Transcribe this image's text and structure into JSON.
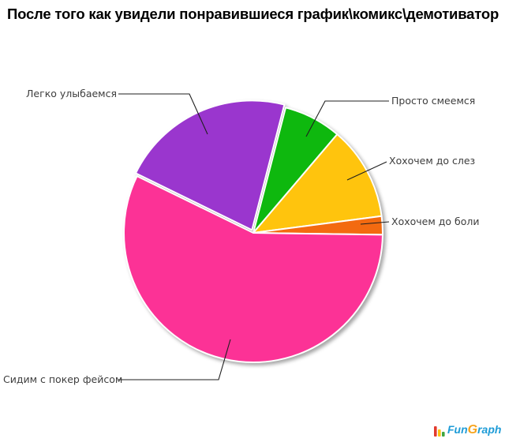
{
  "title": "После того как увидели понравившиеся график\\комикс\\демотиватор",
  "chart_data": {
    "type": "pie",
    "title": "После того как увидели понравившиеся график\\комикс\\демотиватор",
    "legend_position": "none",
    "labels_style": "callout-leader-lines",
    "start_angle_deg": 75.5,
    "direction": "clockwise",
    "slices": [
      {
        "label": "Просто смеемся",
        "value_pct": 7.2,
        "color": "#0EB80E",
        "exploded": false
      },
      {
        "label": "Хохочем до слез",
        "value_pct": 11.7,
        "color": "#FFC40D",
        "exploded": false
      },
      {
        "label": "Хохочем до боли",
        "value_pct": 2.3,
        "color": "#F36A10",
        "exploded": false
      },
      {
        "label": "Сидим с покер фейсом",
        "value_pct": 57.0,
        "color": "#FC3296",
        "exploded": false
      },
      {
        "label": "Легко улыбаемся",
        "value_pct": 21.8,
        "color": "#9A36CE",
        "exploded": true
      }
    ]
  },
  "logo": {
    "text_fun": "Fun",
    "text_g": "G",
    "text_raph": "raph",
    "blue": "#1E9CD7",
    "orange": "#F7A31B",
    "bar_colors": [
      "#E23B2E",
      "#FFC20E",
      "#3FA63F"
    ]
  }
}
